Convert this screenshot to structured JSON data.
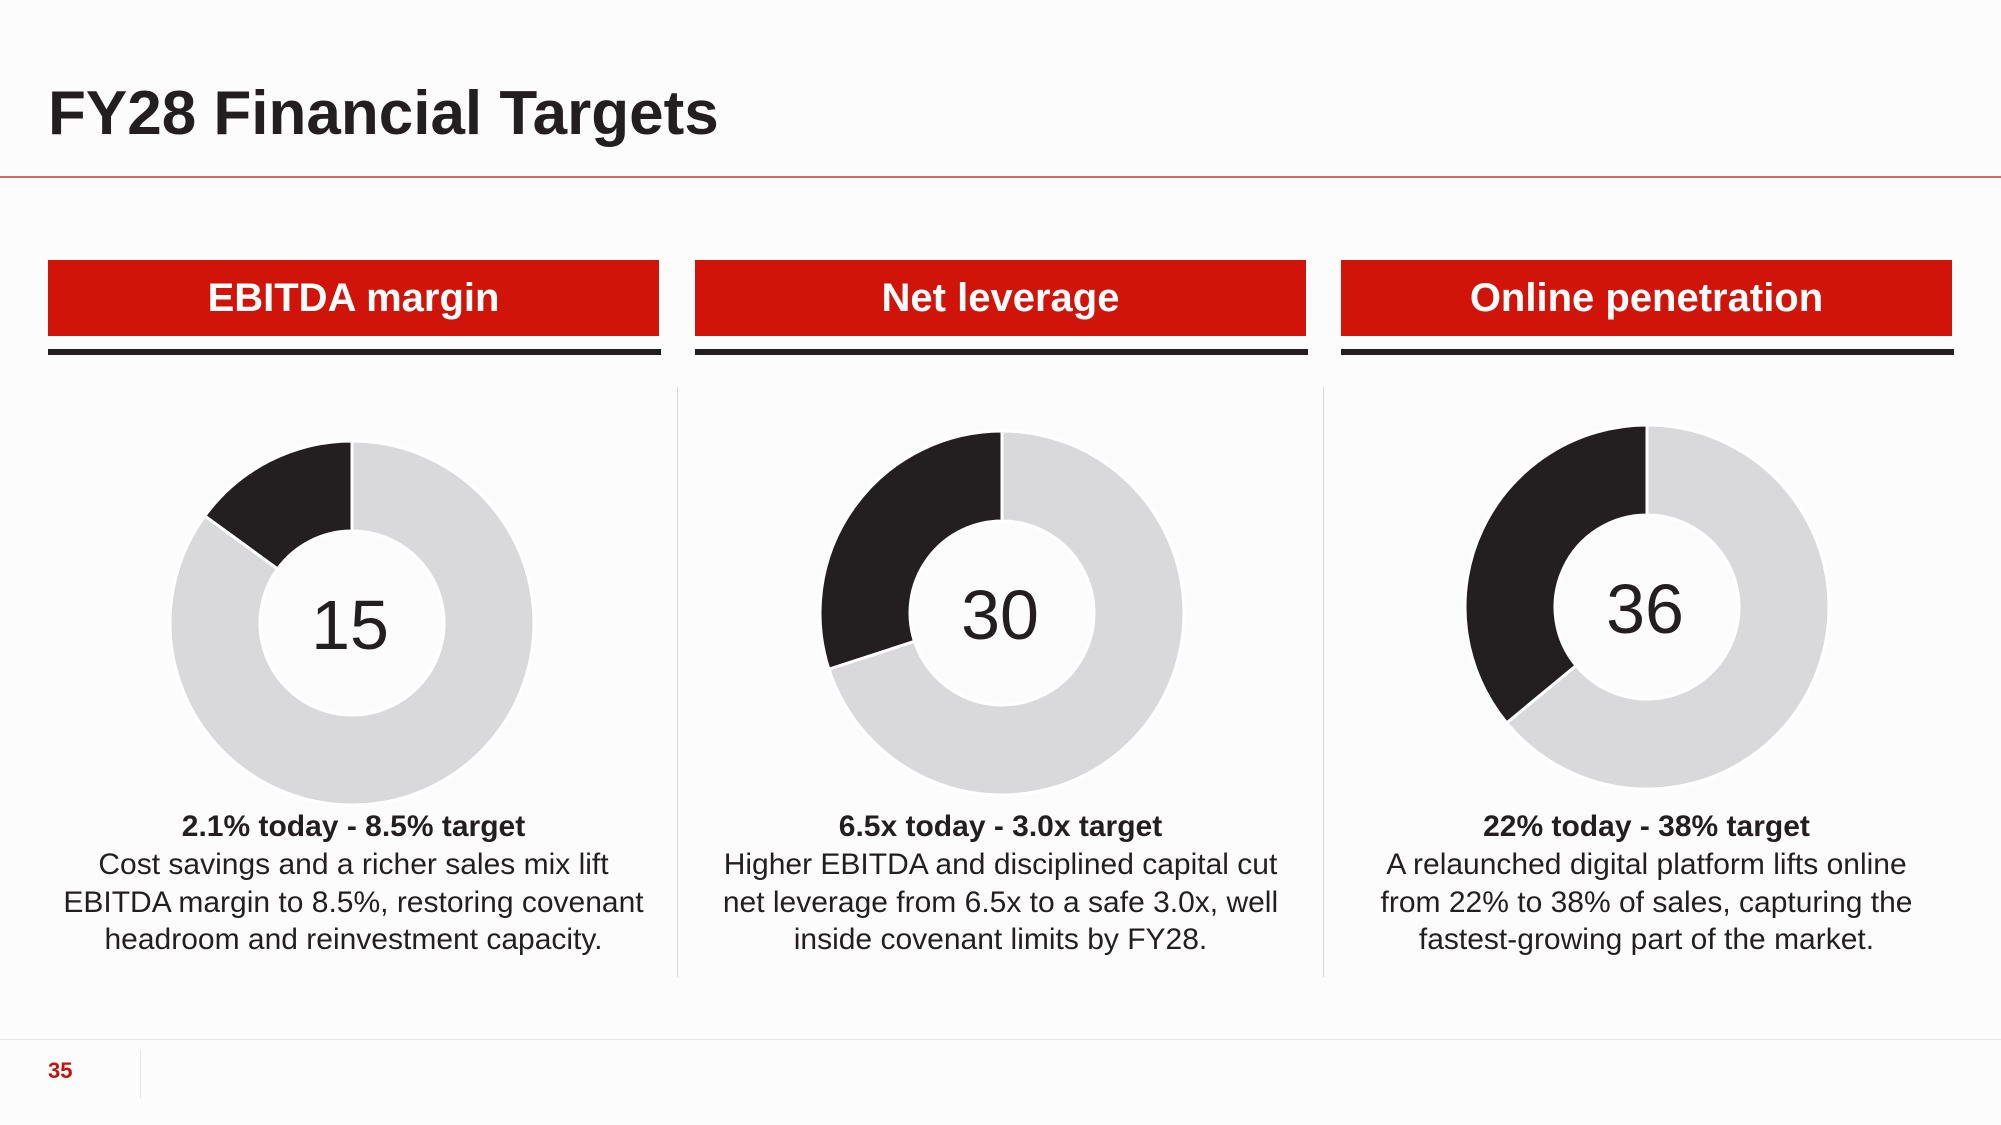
{
  "title": "FY28 Financial Targets",
  "page_number": "35",
  "chart_data": [
    {
      "type": "donut",
      "title": "EBITDA margin",
      "values": [
        15,
        85
      ],
      "colors": [
        "#231f20",
        "#d9d8da"
      ],
      "subtitle": "2.1% today - 8.5% target",
      "description": "Cost savings and a richer sales mix lift EBITDA margin to 8.5%, restoring covenant headroom and reinvestment capacity."
    },
    {
      "type": "donut",
      "title": "Net leverage",
      "values": [
        30,
        70
      ],
      "colors": [
        "#231f20",
        "#d9d8da"
      ],
      "subtitle": "6.5x today - 3.0x target",
      "description": "Higher EBITDA and disciplined capital cut net leverage from 6.5x to a safe 3.0x, well inside covenant limits by FY28."
    },
    {
      "type": "donut",
      "title": "Online penetration",
      "values": [
        36,
        64
      ],
      "colors": [
        "#231f20",
        "#d9d8da"
      ],
      "subtitle": "22% today - 38% target",
      "description": "A relaunched digital platform lifts online from 22% to 38% of sales, capturing the fastest-growing part of the market."
    }
  ]
}
